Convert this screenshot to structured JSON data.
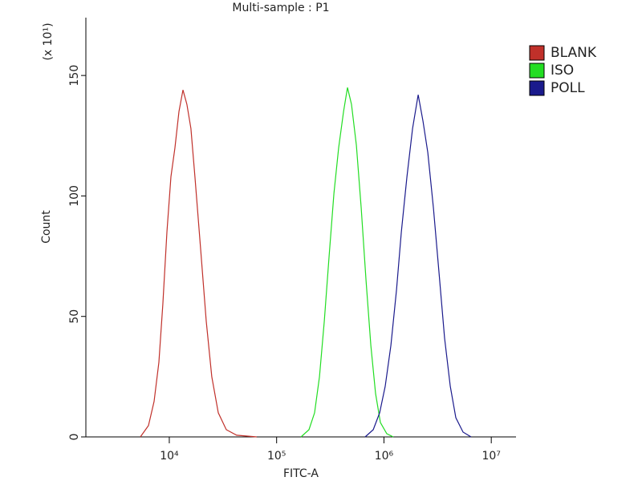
{
  "chart_data": {
    "type": "line",
    "title": "Multi-sample : P1",
    "xlabel": "FITC-A",
    "ylabel": "Count",
    "y_multiplier": "(x 10¹)",
    "x_log": true,
    "xlim": [
      1670,
      17000000
    ],
    "xticks": [
      {
        "value": 10000,
        "label": "10⁴"
      },
      {
        "value": 100000,
        "label": "10⁵"
      },
      {
        "value": 1000000,
        "label": "10⁶"
      },
      {
        "value": 10000000,
        "label": "10⁷"
      }
    ],
    "ylim": [
      0,
      174
    ],
    "yticks": [
      0,
      50,
      100,
      150
    ],
    "legend": "right",
    "series": [
      {
        "name": "BLANK",
        "color": "#c0302a",
        "x": [
          5380,
          6400,
          7210,
          8000,
          8710,
          9510,
          10350,
          11280,
          12300,
          13400,
          14600,
          15900,
          17340,
          19580,
          22090,
          24900,
          28600,
          33960,
          42460,
          65300
        ],
        "values": [
          0,
          4.7,
          14.7,
          31,
          55,
          85,
          108,
          120,
          135,
          144,
          138,
          128,
          108,
          78,
          48,
          25,
          10,
          3,
          0.7,
          0
        ]
      },
      {
        "name": "ISO",
        "color": "#22dd22",
        "x": [
          168700,
          200000,
          225900,
          250600,
          278000,
          308300,
          342000,
          378700,
          420200,
          457400,
          498700,
          553300,
          613800,
          680800,
          755100,
          835600,
          926900,
          1064000,
          1222000
        ],
        "values": [
          0,
          3,
          10,
          25,
          48,
          75,
          101,
          120,
          135,
          145,
          138,
          121,
          95,
          65,
          38,
          18,
          6,
          1.3,
          0
        ]
      },
      {
        "name": "POLL",
        "color": "#1a1a8c",
        "x": [
          668300,
          794300,
          912000,
          1028000,
          1161000,
          1309000,
          1452000,
          1638000,
          1849000,
          2085000,
          2312000,
          2561000,
          2891000,
          3261000,
          3673000,
          4150000,
          4677000,
          5458000,
          6486000
        ],
        "values": [
          0,
          3,
          10,
          21,
          38,
          61,
          85,
          108,
          128,
          142,
          131,
          118,
          95,
          68,
          41,
          21,
          8,
          2,
          0
        ]
      }
    ]
  }
}
